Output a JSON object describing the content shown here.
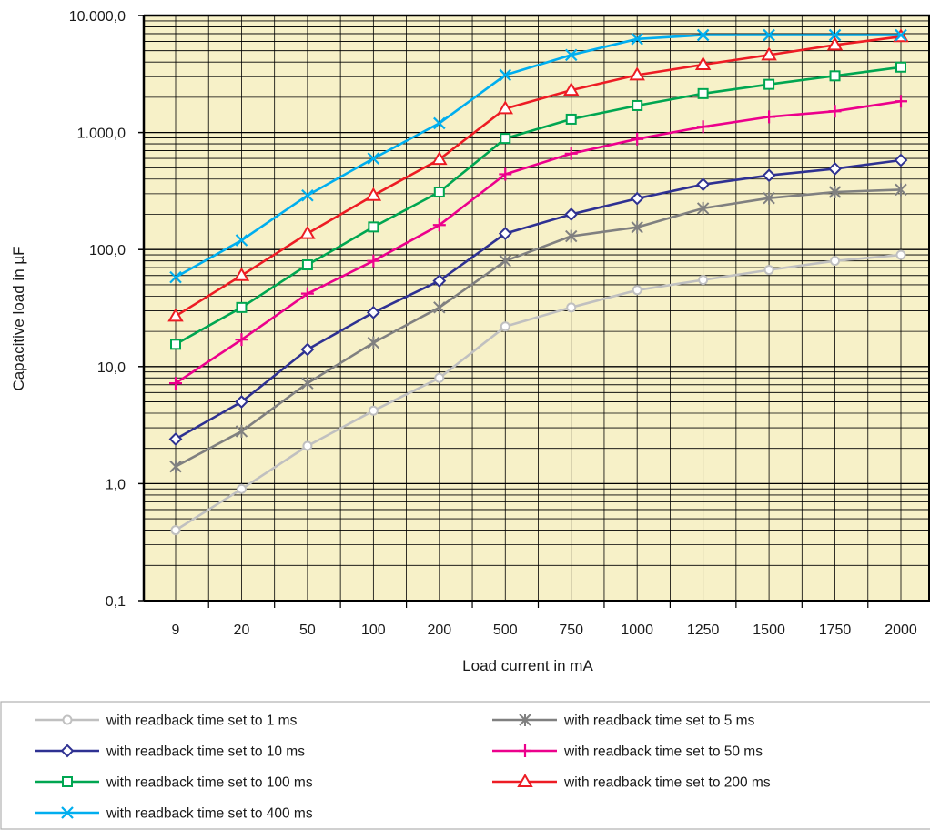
{
  "chart_data": {
    "type": "line",
    "xlabel": "Load current in mA",
    "ylabel": "Capacitive load in µF",
    "y_scale": "log",
    "ylim": [
      0.1,
      10000
    ],
    "y_tick_values": [
      0.1,
      1,
      10,
      100,
      1000,
      10000
    ],
    "y_tick_labels": [
      "0,1",
      "1,0",
      "10,0",
      "100,0",
      "1.000,0",
      "10.000,0"
    ],
    "categories": [
      "9",
      "20",
      "50",
      "100",
      "200",
      "500",
      "750",
      "1000",
      "1250",
      "1500",
      "1750",
      "2000"
    ],
    "grid": true,
    "plot_background": "#f7f1c8",
    "legend_position": "bottom",
    "series": [
      {
        "name": "with readback time set to 1 ms",
        "color": "#c0c0c0",
        "marker": "circle",
        "values": [
          0.4,
          0.9,
          2.1,
          4.2,
          8,
          22,
          32,
          45,
          55,
          67,
          80,
          90
        ]
      },
      {
        "name": "with readback time set to 5 ms",
        "color": "#808080",
        "marker": "asterisk",
        "values": [
          1.4,
          2.8,
          7.2,
          16,
          32,
          80,
          130,
          155,
          225,
          275,
          310,
          325
        ]
      },
      {
        "name": "with readback time set to 10 ms",
        "color": "#2e3192",
        "marker": "diamond",
        "values": [
          2.4,
          5,
          14,
          29,
          54,
          137,
          200,
          273,
          360,
          430,
          490,
          580
        ]
      },
      {
        "name": "with readback time set to 50 ms",
        "color": "#ec008c",
        "marker": "plus",
        "values": [
          7.2,
          17,
          42,
          80,
          162,
          440,
          660,
          880,
          1120,
          1360,
          1520,
          1850
        ]
      },
      {
        "name": "with readback time set to 100 ms",
        "color": "#00a651",
        "marker": "square",
        "values": [
          15.5,
          32,
          74,
          156,
          310,
          890,
          1300,
          1700,
          2150,
          2580,
          3050,
          3620
        ]
      },
      {
        "name": "with readback time set to 200 ms",
        "color": "#ed1c24",
        "marker": "triangle",
        "values": [
          27,
          60,
          137,
          290,
          590,
          1600,
          2300,
          3100,
          3800,
          4600,
          5600,
          6600
        ]
      },
      {
        "name": "with readback time set to 400 ms",
        "color": "#00aeef",
        "marker": "x",
        "values": [
          58,
          120,
          290,
          600,
          1200,
          3100,
          4600,
          6300,
          6800,
          6800,
          6800,
          6800
        ]
      }
    ]
  }
}
